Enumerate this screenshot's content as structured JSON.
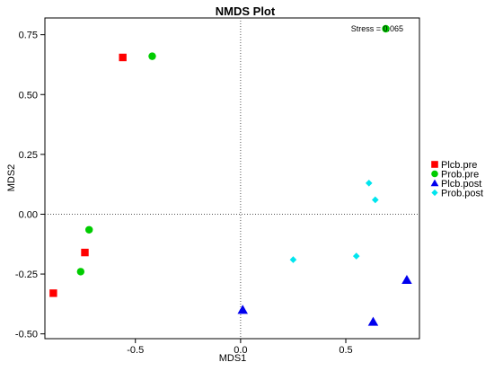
{
  "chart_data": {
    "type": "scatter",
    "title": "NMDS Plot",
    "xlabel": "MDS1",
    "ylabel": "MDS2",
    "annotation": "Stress = 0.065",
    "xlim": [
      -0.93,
      0.85
    ],
    "ylim": [
      -0.52,
      0.82
    ],
    "xticks": [
      -0.5,
      0.0,
      0.5
    ],
    "xtick_labels": [
      "-0.5",
      "0.0",
      "0.5"
    ],
    "yticks": [
      0.75,
      0.5,
      0.25,
      0.0,
      -0.25,
      -0.5
    ],
    "ytick_labels": [
      "0.75",
      "0.50",
      "0.25",
      "0.00",
      "-0.25",
      "-0.50"
    ],
    "reference_lines": {
      "x": 0,
      "y": 0,
      "style": "dotted"
    },
    "legend_position": "right",
    "series": [
      {
        "name": "Plcb.pre",
        "marker": "square",
        "color": "#ff0000",
        "points": [
          [
            -0.56,
            0.655
          ],
          [
            -0.74,
            -0.16
          ],
          [
            -0.89,
            -0.33
          ]
        ]
      },
      {
        "name": "Prob.pre",
        "marker": "circle",
        "color": "#00cc00",
        "points": [
          [
            -0.42,
            0.66
          ],
          [
            0.69,
            0.775
          ],
          [
            -0.72,
            -0.065
          ],
          [
            -0.76,
            -0.24
          ]
        ]
      },
      {
        "name": "Plcb.post",
        "marker": "triangle",
        "color": "#0000ee",
        "points": [
          [
            0.01,
            -0.4
          ],
          [
            0.63,
            -0.45
          ],
          [
            0.79,
            -0.275
          ]
        ]
      },
      {
        "name": "Prob.post",
        "marker": "diamond",
        "color": "#00e5ee",
        "points": [
          [
            0.61,
            0.13
          ],
          [
            0.64,
            0.06
          ],
          [
            0.55,
            -0.175
          ],
          [
            0.25,
            -0.19
          ]
        ]
      }
    ]
  }
}
